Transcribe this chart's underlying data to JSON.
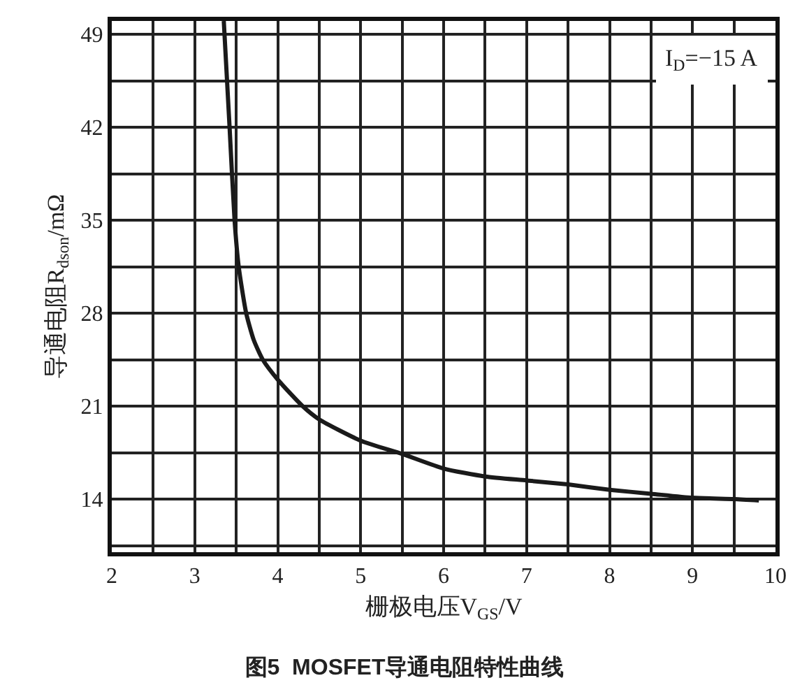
{
  "chart_data": {
    "type": "line",
    "title": "图5  MOSFET导通电阻特性曲线",
    "xlabel": "栅极电压V$_{GS}$/V",
    "ylabel": "导通电阻R$_{dson}$/mΩ",
    "annotations": [
      "I$_{D}$=−15 A"
    ],
    "x": [
      3.35,
      3.42,
      3.48,
      3.53,
      3.62,
      3.71,
      3.82,
      4.0,
      4.3,
      4.5,
      5.0,
      5.5,
      6.0,
      6.5,
      7.0,
      7.5,
      8.0,
      8.5,
      9.0,
      9.5,
      9.8
    ],
    "series": [
      {
        "color": "#1a1a1a",
        "values": [
          50,
          42,
          35,
          31.5,
          28,
          26,
          24.5,
          23.0,
          21,
          20.0,
          18.4,
          17.4,
          16.3,
          15.7,
          15.4,
          15.1,
          14.7,
          14.4,
          14.1,
          14.0,
          13.9
        ]
      }
    ],
    "xlim": [
      2,
      10
    ],
    "xticks": [
      2,
      3,
      4,
      5,
      6,
      7,
      8,
      9,
      10
    ],
    "ylim": [
      10,
      50
    ],
    "yticks": [
      14,
      21,
      28,
      35,
      42,
      49
    ],
    "grid": true,
    "marker": "none",
    "line_style": "solid"
  }
}
